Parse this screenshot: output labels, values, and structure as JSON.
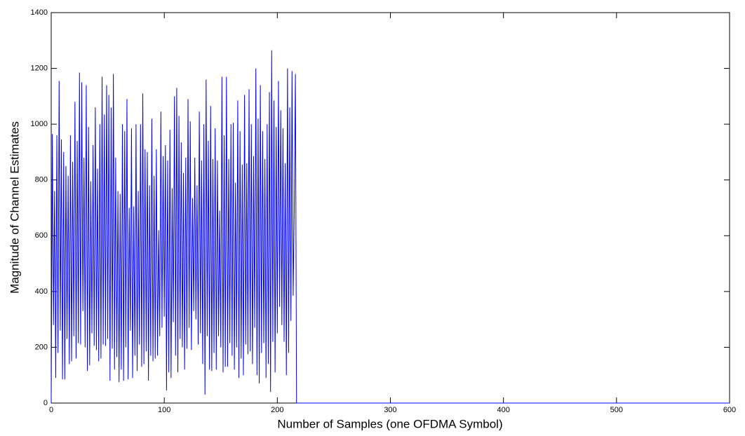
{
  "chart_data": {
    "type": "line",
    "xlabel": "Number of Samples (one OFDMA Symbol)",
    "ylabel": "Magnitude of Channel Estimates",
    "x": [
      0,
      1,
      2,
      3,
      4,
      5,
      6,
      7,
      8,
      9,
      10,
      11,
      12,
      13,
      14,
      15,
      16,
      17,
      18,
      19,
      20,
      21,
      22,
      23,
      24,
      25,
      26,
      27,
      28,
      29,
      30,
      31,
      32,
      33,
      34,
      35,
      36,
      37,
      38,
      39,
      40,
      41,
      42,
      43,
      44,
      45,
      46,
      47,
      48,
      49,
      50,
      51,
      52,
      53,
      54,
      55,
      56,
      57,
      58,
      59,
      60,
      61,
      62,
      63,
      64,
      65,
      66,
      67,
      68,
      69,
      70,
      71,
      72,
      73,
      74,
      75,
      76,
      77,
      78,
      79,
      80,
      81,
      82,
      83,
      84,
      85,
      86,
      87,
      88,
      89,
      90,
      91,
      92,
      93,
      94,
      95,
      96,
      97,
      98,
      99,
      100,
      101,
      102,
      103,
      104,
      105,
      106,
      107,
      108,
      109,
      110,
      111,
      112,
      113,
      114,
      115,
      116,
      117,
      118,
      119,
      120,
      121,
      122,
      123,
      124,
      125,
      126,
      127,
      128,
      129,
      130,
      131,
      132,
      133,
      134,
      135,
      136,
      137,
      138,
      139,
      140,
      141,
      142,
      143,
      144,
      145,
      146,
      147,
      148,
      149,
      150,
      151,
      152,
      153,
      154,
      155,
      156,
      157,
      158,
      159,
      160,
      161,
      162,
      163,
      164,
      165,
      166,
      167,
      168,
      169,
      170,
      171,
      172,
      173,
      174,
      175,
      176,
      177,
      178,
      179,
      180,
      181,
      182,
      183,
      184,
      185,
      186,
      187,
      188,
      189,
      190,
      191,
      192,
      193,
      194,
      195,
      196,
      197,
      198,
      199,
      200,
      201,
      202,
      203,
      204,
      205,
      206,
      207,
      208,
      209,
      210,
      211,
      212,
      213,
      214,
      215,
      216,
      217,
      600
    ],
    "series": [
      {
        "color": "#0000ff",
        "values": [
          0,
          965,
          280,
          760,
          90,
          960,
          180,
          1155,
          260,
          945,
          85,
          900,
          85,
          850,
          230,
          815,
          140,
          960,
          150,
          865,
          240,
          1080,
          160,
          940,
          215,
          1185,
          210,
          1150,
          330,
          880,
          200,
          1140,
          115,
          990,
          135,
          795,
          250,
          925,
          205,
          1060,
          190,
          840,
          150,
          1000,
          160,
          1170,
          210,
          1035,
          205,
          1140,
          230,
          1105,
          80,
          1060,
          195,
          1180,
          120,
          880,
          165,
          760,
          75,
          750,
          120,
          1000,
          80,
          975,
          200,
          1090,
          85,
          700,
          260,
          985,
          90,
          705,
          170,
          1000,
          115,
          760,
          210,
          1000,
          130,
          1110,
          140,
          910,
          185,
          900,
          80,
          780,
          170,
          1020,
          150,
          815,
          160,
          910,
          170,
          620,
          240,
          1045,
          270,
          885,
          310,
          925,
          45,
          870,
          110,
          980,
          90,
          770,
          290,
          1100,
          170,
          1130,
          110,
          1030,
          230,
          935,
          200,
          825,
          120,
          880,
          195,
          1090,
          270,
          1010,
          190,
          735,
          330,
          880,
          300,
          780,
          210,
          1045,
          250,
          870,
          140,
          1000,
          30,
          1160,
          240,
          940,
          120,
          1065,
          115,
          875,
          180,
          985,
          120,
          870,
          240,
          690,
          200,
          1170,
          110,
          960,
          130,
          1170,
          130,
          875,
          215,
          1000,
          170,
          1005,
          120,
          790,
          200,
          1085,
          90,
          975,
          160,
          855,
          100,
          1105,
          210,
          860,
          175,
          1125,
          185,
          1000,
          140,
          885,
          270,
          1200,
          100,
          1020,
          70,
          1140,
          180,
          975,
          215,
          875,
          90,
          1000,
          140,
          1115,
          40,
          1265,
          220,
          1085,
          110,
          990,
          250,
          1155,
          345,
          1050,
          280,
          985,
          220,
          860,
          100,
          1200,
          180,
          1060,
          295,
          1190,
          385,
          700,
          1180,
          0,
          0
        ]
      }
    ],
    "xlim": [
      0,
      600
    ],
    "xticks": [
      0,
      100,
      200,
      300,
      400,
      500,
      600
    ],
    "ylim": [
      0,
      1400
    ],
    "yticks": [
      0,
      200,
      400,
      600,
      800,
      1000,
      1200,
      1400
    ]
  }
}
